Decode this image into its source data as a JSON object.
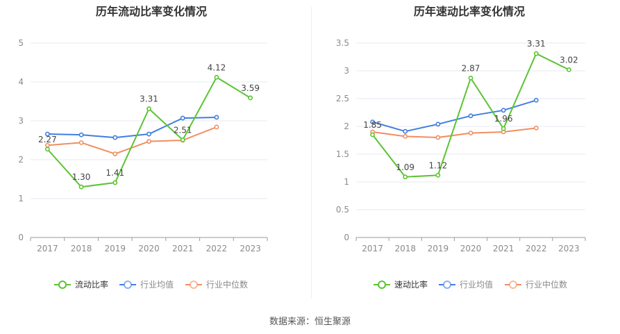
{
  "footer": {
    "source": "数据来源：恒生聚源"
  },
  "colors": {
    "main": "#5ac432",
    "avg": "#3f7de3",
    "median": "#f08e61"
  },
  "chart_data": [
    {
      "type": "line",
      "title": "历年流动比率变化情况",
      "categories": [
        "2017",
        "2018",
        "2019",
        "2020",
        "2021",
        "2022",
        "2023"
      ],
      "ylim": [
        0,
        5
      ],
      "yticks": [
        "0",
        "1",
        "2",
        "3",
        "4",
        "5"
      ],
      "yticks_values": [
        0,
        1,
        2,
        3,
        4,
        5
      ],
      "grid": true,
      "legend_position": "bottom",
      "series": [
        {
          "name": "流动比率",
          "color": "#5ac432",
          "values": [
            2.27,
            1.3,
            1.41,
            3.31,
            2.51,
            4.12,
            3.59
          ],
          "labels": [
            "2.27",
            "1.30",
            "1.41",
            "3.31",
            "2.51",
            "4.12",
            "3.59"
          ]
        },
        {
          "name": "行业均值",
          "color": "#3f7de3",
          "values": [
            2.66,
            2.64,
            2.57,
            2.66,
            3.07,
            3.09,
            null
          ]
        },
        {
          "name": "行业中位数",
          "color": "#f08e61",
          "values": [
            2.37,
            2.44,
            2.15,
            2.47,
            2.5,
            2.84,
            null
          ]
        }
      ]
    },
    {
      "type": "line",
      "title": "历年速动比率变化情况",
      "categories": [
        "2017",
        "2018",
        "2019",
        "2020",
        "2021",
        "2022",
        "2023"
      ],
      "ylim": [
        0,
        3.5
      ],
      "yticks": [
        "0",
        "0.5",
        "1",
        "1.5",
        "2",
        "2.5",
        "3",
        "3.5"
      ],
      "yticks_values": [
        0,
        0.5,
        1,
        1.5,
        2,
        2.5,
        3,
        3.5
      ],
      "grid": true,
      "legend_position": "bottom",
      "series": [
        {
          "name": "速动比率",
          "color": "#5ac432",
          "values": [
            1.85,
            1.09,
            1.12,
            2.87,
            1.96,
            3.31,
            3.02
          ],
          "labels": [
            "1.85",
            "1.09",
            "1.12",
            "2.87",
            "1.96",
            "3.31",
            "3.02"
          ]
        },
        {
          "name": "行业均值",
          "color": "#3f7de3",
          "values": [
            2.08,
            1.91,
            2.04,
            2.19,
            2.29,
            2.47,
            null
          ]
        },
        {
          "name": "行业中位数",
          "color": "#f08e61",
          "values": [
            1.9,
            1.82,
            1.8,
            1.88,
            1.9,
            1.97,
            null
          ]
        }
      ]
    }
  ]
}
